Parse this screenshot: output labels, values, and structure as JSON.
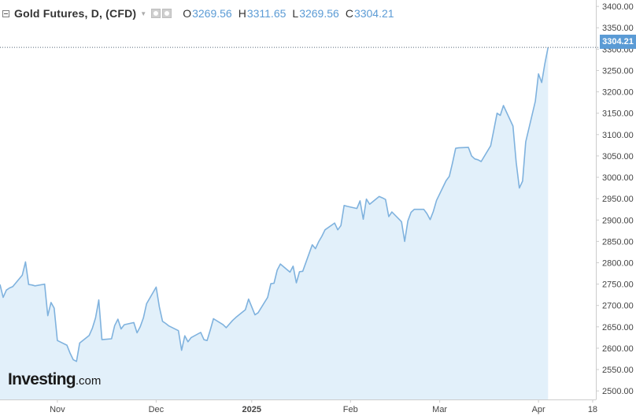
{
  "legend": {
    "title": "Gold Futures, D, (CFD)",
    "open_label": "O",
    "open_value": "3269.56",
    "high_label": "H",
    "high_value": "3311.65",
    "low_label": "L",
    "low_value": "3269.56",
    "close_label": "C",
    "close_value": "3304.21"
  },
  "logo": {
    "text": "Investing",
    "suffix": ".com"
  },
  "last_price_label": "3304.21",
  "colors": {
    "line": "#7fb2de",
    "area": "#e2f0fa",
    "badge": "#5b9bd5",
    "axis_text": "#444444",
    "grid": "#cccccc",
    "price_line": "#556677"
  },
  "chart_data": {
    "type": "area",
    "title": "Gold Futures, D, (CFD)",
    "ylim": [
      2480,
      3415
    ],
    "y_ticks": [
      2500,
      2550,
      2600,
      2650,
      2700,
      2750,
      2800,
      2850,
      2900,
      2950,
      3000,
      3050,
      3100,
      3150,
      3200,
      3250,
      3300,
      3350,
      3400
    ],
    "y_tick_labels": [
      "2500.00",
      "2550.00",
      "2600.00",
      "2650.00",
      "2700.00",
      "2750.00",
      "2800.00",
      "2850.00",
      "2900.00",
      "2950.00",
      "3000.00",
      "3050.00",
      "3100.00",
      "3150.00",
      "3200.00",
      "3250.00",
      "3300.00",
      "3350.00",
      "3400.00"
    ],
    "x_range": [
      "2024-10-14",
      "2025-04-19"
    ],
    "x_ticks": [
      {
        "date": "2024-11-01",
        "label": "Nov"
      },
      {
        "date": "2024-12-02",
        "label": "Dec"
      },
      {
        "date": "2025-01-01",
        "label": "2025"
      },
      {
        "date": "2025-02-01",
        "label": "Feb"
      },
      {
        "date": "2025-03-01",
        "label": "Mar"
      },
      {
        "date": "2025-04-01",
        "label": "Apr"
      },
      {
        "date": "2025-04-18",
        "label": "18"
      }
    ],
    "last_value": 3304.21,
    "series": [
      {
        "points": [
          [
            "2024-10-14",
            2749
          ],
          [
            "2024-10-15",
            2719
          ],
          [
            "2024-10-16",
            2736
          ],
          [
            "2024-10-17",
            2741
          ],
          [
            "2024-10-18",
            2744
          ],
          [
            "2024-10-21",
            2771
          ],
          [
            "2024-10-22",
            2802
          ],
          [
            "2024-10-23",
            2749
          ],
          [
            "2024-10-24",
            2748
          ],
          [
            "2024-10-25",
            2746
          ],
          [
            "2024-10-28",
            2750
          ],
          [
            "2024-10-29",
            2676
          ],
          [
            "2024-10-30",
            2707
          ],
          [
            "2024-10-31",
            2694
          ],
          [
            "2024-11-01",
            2618
          ],
          [
            "2024-11-04",
            2607
          ],
          [
            "2024-11-05",
            2588
          ],
          [
            "2024-11-06",
            2573
          ],
          [
            "2024-11-07",
            2569
          ],
          [
            "2024-11-08",
            2612
          ],
          [
            "2024-11-11",
            2630
          ],
          [
            "2024-11-12",
            2647
          ],
          [
            "2024-11-13",
            2671
          ],
          [
            "2024-11-14",
            2713
          ],
          [
            "2024-11-15",
            2620
          ],
          [
            "2024-11-18",
            2622
          ],
          [
            "2024-11-19",
            2653
          ],
          [
            "2024-11-20",
            2668
          ],
          [
            "2024-11-21",
            2645
          ],
          [
            "2024-11-22",
            2655
          ],
          [
            "2024-11-25",
            2660
          ],
          [
            "2024-11-26",
            2636
          ],
          [
            "2024-11-27",
            2650
          ],
          [
            "2024-11-28",
            2671
          ],
          [
            "2024-11-29",
            2704
          ],
          [
            "2024-12-02",
            2743
          ],
          [
            "2024-12-03",
            2697
          ],
          [
            "2024-12-04",
            2663
          ],
          [
            "2024-12-05",
            2658
          ],
          [
            "2024-12-06",
            2652
          ],
          [
            "2024-12-09",
            2641
          ],
          [
            "2024-12-10",
            2595
          ],
          [
            "2024-12-11",
            2629
          ],
          [
            "2024-12-12",
            2615
          ],
          [
            "2024-12-13",
            2625
          ],
          [
            "2024-12-16",
            2637
          ],
          [
            "2024-12-17",
            2620
          ],
          [
            "2024-12-18",
            2618
          ],
          [
            "2024-12-19",
            2643
          ],
          [
            "2024-12-20",
            2669
          ],
          [
            "2024-12-23",
            2655
          ],
          [
            "2024-12-24",
            2648
          ],
          [
            "2024-12-26",
            2665
          ],
          [
            "2024-12-27",
            2672
          ],
          [
            "2024-12-30",
            2690
          ],
          [
            "2024-12-31",
            2715
          ],
          [
            "2025-01-02",
            2678
          ],
          [
            "2025-01-03",
            2683
          ],
          [
            "2025-01-06",
            2719
          ],
          [
            "2025-01-07",
            2751
          ],
          [
            "2025-01-08",
            2752
          ],
          [
            "2025-01-09",
            2783
          ],
          [
            "2025-01-10",
            2797
          ],
          [
            "2025-01-13",
            2778
          ],
          [
            "2025-01-14",
            2792
          ],
          [
            "2025-01-15",
            2753
          ],
          [
            "2025-01-16",
            2779
          ],
          [
            "2025-01-17",
            2780
          ],
          [
            "2025-01-20",
            2842
          ],
          [
            "2025-01-21",
            2833
          ],
          [
            "2025-01-22",
            2849
          ],
          [
            "2025-01-23",
            2862
          ],
          [
            "2025-01-24",
            2877
          ],
          [
            "2025-01-27",
            2893
          ],
          [
            "2025-01-28",
            2877
          ],
          [
            "2025-01-29",
            2887
          ],
          [
            "2025-01-30",
            2934
          ],
          [
            "2025-01-31",
            2932
          ],
          [
            "2025-02-03",
            2927
          ],
          [
            "2025-02-04",
            2945
          ],
          [
            "2025-02-05",
            2902
          ],
          [
            "2025-02-06",
            2949
          ],
          [
            "2025-02-07",
            2937
          ],
          [
            "2025-02-10",
            2955
          ],
          [
            "2025-02-11",
            2952
          ],
          [
            "2025-02-12",
            2948
          ],
          [
            "2025-02-13",
            2908
          ],
          [
            "2025-02-14",
            2919
          ],
          [
            "2025-02-17",
            2896
          ],
          [
            "2025-02-18",
            2850
          ],
          [
            "2025-02-19",
            2898
          ],
          [
            "2025-02-20",
            2918
          ],
          [
            "2025-02-21",
            2925
          ],
          [
            "2025-02-24",
            2925
          ],
          [
            "2025-02-25",
            2915
          ],
          [
            "2025-02-26",
            2901
          ],
          [
            "2025-02-27",
            2920
          ],
          [
            "2025-02-28",
            2946
          ],
          [
            "2025-03-03",
            2992
          ],
          [
            "2025-03-04",
            3002
          ],
          [
            "2025-03-05",
            3033
          ],
          [
            "2025-03-06",
            3068
          ],
          [
            "2025-03-07",
            3069
          ],
          [
            "2025-03-10",
            3070
          ],
          [
            "2025-03-11",
            3050
          ],
          [
            "2025-03-12",
            3043
          ],
          [
            "2025-03-13",
            3041
          ],
          [
            "2025-03-14",
            3037
          ],
          [
            "2025-03-17",
            3074
          ],
          [
            "2025-03-18",
            3112
          ],
          [
            "2025-03-19",
            3150
          ],
          [
            "2025-03-20",
            3145
          ],
          [
            "2025-03-21",
            3168
          ],
          [
            "2025-03-24",
            3120
          ],
          [
            "2025-03-25",
            3035
          ],
          [
            "2025-03-26",
            2975
          ],
          [
            "2025-03-27",
            2991
          ],
          [
            "2025-03-28",
            3083
          ],
          [
            "2025-03-31",
            3178
          ],
          [
            "2025-04-01",
            3242
          ],
          [
            "2025-04-02",
            3222
          ],
          [
            "2025-04-03",
            3266
          ],
          [
            "2025-04-04",
            3304.21
          ]
        ]
      }
    ]
  }
}
